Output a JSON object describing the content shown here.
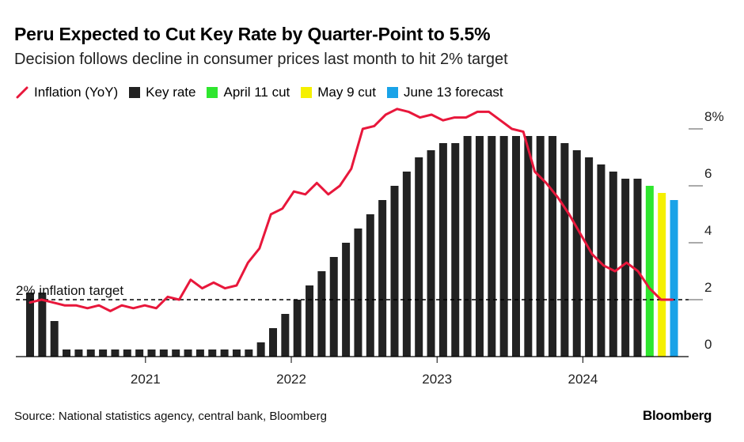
{
  "title": "Peru Expected to Cut Key Rate by Quarter-Point to 5.5%",
  "subtitle": "Decision follows decline in consumer prices last month to hit 2% target",
  "legend": [
    {
      "label": "Inflation (YoY)",
      "kind": "line",
      "color": "#e8173b"
    },
    {
      "label": "Key rate",
      "kind": "bar",
      "color": "#222222"
    },
    {
      "label": "April 11 cut",
      "kind": "bar",
      "color": "#2ee62e"
    },
    {
      "label": "May 9 cut",
      "kind": "bar",
      "color": "#f5f000"
    },
    {
      "label": "June 13 forecast",
      "kind": "bar",
      "color": "#1aa3e8"
    }
  ],
  "source": "Source: National statistics agency, central bank, Bloomberg",
  "brand": "Bloomberg",
  "chart_data": {
    "type": "bar",
    "title": "Peru Expected to Cut Key Rate by Quarter-Point to 5.5%",
    "ylim": [
      0,
      8
    ],
    "yticks": [
      0,
      2,
      4,
      6,
      8
    ],
    "ytick_labels": [
      "0",
      "2",
      "4",
      "6",
      "8%"
    ],
    "xtick_labels": [
      {
        "label": "2021",
        "index": 9.5
      },
      {
        "label": "2022",
        "index": 21.5
      },
      {
        "label": "2023",
        "index": 33.5
      },
      {
        "label": "2024",
        "index": 45.5
      }
    ],
    "reference_line": {
      "value": 2,
      "label": "2% inflation target"
    },
    "series": [
      {
        "name": "Key rate",
        "type": "bar",
        "color": "#222222",
        "values": [
          2.25,
          2.25,
          1.25,
          0.25,
          0.25,
          0.25,
          0.25,
          0.25,
          0.25,
          0.25,
          0.25,
          0.25,
          0.25,
          0.25,
          0.25,
          0.25,
          0.25,
          0.25,
          0.25,
          0.5,
          1.0,
          1.5,
          2.0,
          2.5,
          3.0,
          3.5,
          4.0,
          4.5,
          5.0,
          5.5,
          6.0,
          6.5,
          7.0,
          7.25,
          7.5,
          7.5,
          7.75,
          7.75,
          7.75,
          7.75,
          7.75,
          7.75,
          7.75,
          7.75,
          7.5,
          7.25,
          7.0,
          6.75,
          6.5,
          6.25,
          6.25
        ]
      },
      {
        "name": "Policy decisions",
        "type": "bar",
        "values": [
          {
            "label": "April 11 cut",
            "value": 6.0,
            "color": "#2ee62e"
          },
          {
            "label": "May 9 cut",
            "value": 5.75,
            "color": "#f5f000"
          },
          {
            "label": "June 13 forecast",
            "value": 5.5,
            "color": "#1aa3e8"
          }
        ]
      },
      {
        "name": "Inflation (YoY)",
        "type": "line",
        "color": "#e8173b",
        "values": [
          1.9,
          2.0,
          1.9,
          1.8,
          1.8,
          1.7,
          1.8,
          1.6,
          1.8,
          1.7,
          1.8,
          1.7,
          2.1,
          2.0,
          2.7,
          2.4,
          2.6,
          2.4,
          2.5,
          3.3,
          3.8,
          5.0,
          5.2,
          5.8,
          5.7,
          6.1,
          5.7,
          6.0,
          6.6,
          8.0,
          8.1,
          8.5,
          8.7,
          8.6,
          8.4,
          8.5,
          8.3,
          8.4,
          8.4,
          8.6,
          8.6,
          8.3,
          8.0,
          7.9,
          6.5,
          6.1,
          5.6,
          5.0,
          4.3,
          3.6,
          3.2,
          3.0,
          3.3,
          3.0,
          2.4,
          2.0,
          2.0
        ]
      }
    ]
  }
}
